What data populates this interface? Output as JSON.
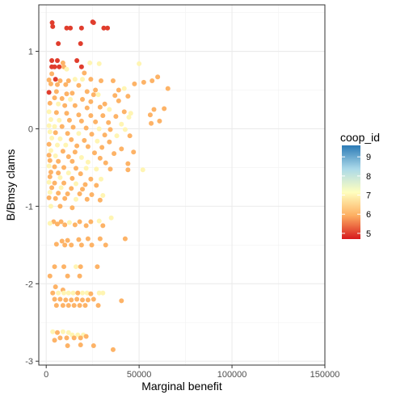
{
  "chart_data": {
    "type": "scatter",
    "xlabel": "Marginal benefit",
    "ylabel": "B/Bmsy clams",
    "xlim": [
      -4000,
      150000
    ],
    "ylim": [
      -3.05,
      1.6
    ],
    "x_ticks": [
      0,
      50000,
      100000,
      150000
    ],
    "x_tick_labels": [
      "0",
      "50000",
      "100000",
      "150000"
    ],
    "y_ticks": [
      -3,
      -2,
      -1,
      0,
      1
    ],
    "y_tick_labels": [
      "-3",
      "-2",
      "-1",
      "0",
      "1"
    ],
    "grid": true,
    "legend": {
      "title": "coop_id",
      "placement": "right",
      "range": [
        4.7,
        9.6
      ],
      "ticks": [
        5,
        6,
        7,
        8,
        9
      ],
      "tick_labels": [
        "5",
        "6",
        "7",
        "8",
        "9"
      ],
      "palette": [
        "#d7191c",
        "#fdae61",
        "#ffffbf",
        "#abd9e9",
        "#2c7bb6"
      ]
    },
    "points": [
      [
        3200,
        1.37,
        5
      ],
      [
        3500,
        1.32,
        5
      ],
      [
        11000,
        1.3,
        5
      ],
      [
        13000,
        1.3,
        5
      ],
      [
        19000,
        1.3,
        5
      ],
      [
        25000,
        1.38,
        5
      ],
      [
        25500,
        1.37,
        5
      ],
      [
        33000,
        1.3,
        5
      ],
      [
        31000,
        1.3,
        5
      ],
      [
        6500,
        1.1,
        5
      ],
      [
        18500,
        1.1,
        5
      ],
      [
        3000,
        0.88,
        5
      ],
      [
        6000,
        0.88,
        5
      ],
      [
        9000,
        0.85,
        6
      ],
      [
        16500,
        0.88,
        5
      ],
      [
        23500,
        0.85,
        7
      ],
      [
        28500,
        0.84,
        7
      ],
      [
        50000,
        0.84,
        7
      ],
      [
        3000,
        0.8,
        5
      ],
      [
        4500,
        0.8,
        5
      ],
      [
        7000,
        0.8,
        5
      ],
      [
        9500,
        0.8,
        6
      ],
      [
        19000,
        0.8,
        5
      ],
      [
        11000,
        0.77,
        7
      ],
      [
        20500,
        0.72,
        6
      ],
      [
        3000,
        0.71,
        6
      ],
      [
        5000,
        0.64,
        5
      ],
      [
        1500,
        0.63,
        6
      ],
      [
        7500,
        0.62,
        6
      ],
      [
        12000,
        0.62,
        6
      ],
      [
        15500,
        0.64,
        7
      ],
      [
        19500,
        0.64,
        7
      ],
      [
        24000,
        0.64,
        6
      ],
      [
        29500,
        0.62,
        6
      ],
      [
        36000,
        0.62,
        6
      ],
      [
        2500,
        0.58,
        6
      ],
      [
        6000,
        0.57,
        6
      ],
      [
        10500,
        0.57,
        6
      ],
      [
        17500,
        0.56,
        6
      ],
      [
        26500,
        0.5,
        6
      ],
      [
        39000,
        0.5,
        6
      ],
      [
        42000,
        0.52,
        7
      ],
      [
        47500,
        0.58,
        6
      ],
      [
        52500,
        0.6,
        6
      ],
      [
        57000,
        0.62,
        6
      ],
      [
        60000,
        0.67,
        6
      ],
      [
        65500,
        0.52,
        6
      ],
      [
        1500,
        0.47,
        5
      ],
      [
        5500,
        0.48,
        6
      ],
      [
        11000,
        0.45,
        6
      ],
      [
        14000,
        0.46,
        6
      ],
      [
        22000,
        0.48,
        6
      ],
      [
        25500,
        0.44,
        6
      ],
      [
        28000,
        0.44,
        7
      ],
      [
        37000,
        0.43,
        6
      ],
      [
        44000,
        0.42,
        6
      ],
      [
        4500,
        0.4,
        6
      ],
      [
        8500,
        0.39,
        6
      ],
      [
        13000,
        0.38,
        7
      ],
      [
        19500,
        0.38,
        6
      ],
      [
        24000,
        0.35,
        6
      ],
      [
        31500,
        0.32,
        6
      ],
      [
        39000,
        0.36,
        6
      ],
      [
        2000,
        0.33,
        6
      ],
      [
        6500,
        0.32,
        7
      ],
      [
        10000,
        0.3,
        6
      ],
      [
        15500,
        0.3,
        6
      ],
      [
        22000,
        0.27,
        6
      ],
      [
        29000,
        0.28,
        6
      ],
      [
        34000,
        0.25,
        7
      ],
      [
        42000,
        0.22,
        6
      ],
      [
        45500,
        0.2,
        7
      ],
      [
        58000,
        0.25,
        6
      ],
      [
        63500,
        0.26,
        6
      ],
      [
        1500,
        0.22,
        7
      ],
      [
        5500,
        0.21,
        6
      ],
      [
        11000,
        0.2,
        6
      ],
      [
        17500,
        0.18,
        6
      ],
      [
        24000,
        0.17,
        6
      ],
      [
        30500,
        0.17,
        6
      ],
      [
        37500,
        0.16,
        6
      ],
      [
        44500,
        0.15,
        7
      ],
      [
        56000,
        0.18,
        6
      ],
      [
        61000,
        0.1,
        6
      ],
      [
        2500,
        0.12,
        7
      ],
      [
        7000,
        0.11,
        7
      ],
      [
        12500,
        0.11,
        6
      ],
      [
        19000,
        0.1,
        6
      ],
      [
        26500,
        0.09,
        6
      ],
      [
        33500,
        0.08,
        6
      ],
      [
        40500,
        0.06,
        7
      ],
      [
        56500,
        0.07,
        6
      ],
      [
        1500,
        0.04,
        7
      ],
      [
        4500,
        0.03,
        7
      ],
      [
        8500,
        0.03,
        6
      ],
      [
        14500,
        0.02,
        6
      ],
      [
        21500,
        0.01,
        6
      ],
      [
        28500,
        0.0,
        7
      ],
      [
        34500,
        -0.01,
        6
      ],
      [
        42500,
        -0.01,
        7
      ],
      [
        2000,
        -0.04,
        7
      ],
      [
        5000,
        -0.05,
        6
      ],
      [
        11500,
        -0.06,
        6
      ],
      [
        17500,
        -0.06,
        7
      ],
      [
        24500,
        -0.07,
        6
      ],
      [
        31500,
        -0.08,
        6
      ],
      [
        38000,
        -0.09,
        7
      ],
      [
        45000,
        -0.09,
        6
      ],
      [
        3000,
        -0.12,
        7
      ],
      [
        7500,
        -0.13,
        7
      ],
      [
        13500,
        -0.14,
        6
      ],
      [
        20500,
        -0.15,
        6
      ],
      [
        27500,
        -0.16,
        7
      ],
      [
        34000,
        -0.17,
        6
      ],
      [
        1500,
        -0.2,
        6
      ],
      [
        6000,
        -0.21,
        7
      ],
      [
        10500,
        -0.21,
        7
      ],
      [
        16500,
        -0.22,
        6
      ],
      [
        22500,
        -0.23,
        6
      ],
      [
        30000,
        -0.24,
        6
      ],
      [
        40500,
        -0.26,
        6
      ],
      [
        2500,
        -0.28,
        7
      ],
      [
        9000,
        -0.29,
        6
      ],
      [
        15500,
        -0.3,
        6
      ],
      [
        26000,
        -0.31,
        6
      ],
      [
        36500,
        -0.32,
        6
      ],
      [
        47000,
        -0.3,
        6
      ],
      [
        1500,
        -0.34,
        6
      ],
      [
        5000,
        -0.35,
        7
      ],
      [
        12000,
        -0.36,
        6
      ],
      [
        19000,
        -0.37,
        7
      ],
      [
        29000,
        -0.38,
        6
      ],
      [
        2000,
        -0.41,
        6
      ],
      [
        6500,
        -0.42,
        6
      ],
      [
        14000,
        -0.42,
        6
      ],
      [
        22500,
        -0.43,
        7
      ],
      [
        32000,
        -0.44,
        6
      ],
      [
        44000,
        -0.45,
        6
      ],
      [
        1500,
        -0.48,
        7
      ],
      [
        4500,
        -0.49,
        6
      ],
      [
        9500,
        -0.5,
        6
      ],
      [
        16000,
        -0.51,
        6
      ],
      [
        21500,
        -0.51,
        7
      ],
      [
        27000,
        -0.52,
        7
      ],
      [
        34500,
        -0.52,
        6
      ],
      [
        44000,
        -0.53,
        6
      ],
      [
        52000,
        -0.53,
        7
      ],
      [
        2500,
        -0.56,
        6
      ],
      [
        6500,
        -0.57,
        6
      ],
      [
        12000,
        -0.57,
        7
      ],
      [
        18500,
        -0.58,
        6
      ],
      [
        2000,
        -0.62,
        6
      ],
      [
        7500,
        -0.63,
        7
      ],
      [
        14000,
        -0.64,
        6
      ],
      [
        24000,
        -0.65,
        6
      ],
      [
        29500,
        -0.65,
        7
      ],
      [
        1500,
        -0.69,
        7
      ],
      [
        4500,
        -0.7,
        6
      ],
      [
        9500,
        -0.7,
        6
      ],
      [
        16000,
        -0.71,
        7
      ],
      [
        21000,
        -0.72,
        6
      ],
      [
        27000,
        -0.73,
        6
      ],
      [
        3000,
        -0.76,
        6
      ],
      [
        8000,
        -0.76,
        7
      ],
      [
        13500,
        -0.77,
        6
      ],
      [
        19500,
        -0.78,
        6
      ],
      [
        2000,
        -0.82,
        7
      ],
      [
        6500,
        -0.83,
        6
      ],
      [
        11500,
        -0.84,
        6
      ],
      [
        18000,
        -0.84,
        6
      ],
      [
        24500,
        -0.85,
        6
      ],
      [
        30500,
        -0.86,
        7
      ],
      [
        1500,
        -0.89,
        6
      ],
      [
        5000,
        -0.9,
        6
      ],
      [
        10000,
        -0.9,
        6
      ],
      [
        16000,
        -0.91,
        7
      ],
      [
        22000,
        -0.91,
        6
      ],
      [
        29000,
        -0.92,
        6
      ],
      [
        2500,
        -1.0,
        7
      ],
      [
        7500,
        -1.0,
        6
      ],
      [
        14000,
        -1.02,
        6
      ],
      [
        4000,
        -1.2,
        6
      ],
      [
        8000,
        -1.2,
        6
      ],
      [
        12500,
        -1.21,
        7
      ],
      [
        18000,
        -1.2,
        6
      ],
      [
        24000,
        -1.2,
        6
      ],
      [
        28500,
        -1.19,
        7
      ],
      [
        35000,
        -1.15,
        7
      ],
      [
        2000,
        -1.22,
        7
      ],
      [
        6000,
        -1.23,
        6
      ],
      [
        10000,
        -1.24,
        6
      ],
      [
        15500,
        -1.24,
        6
      ],
      [
        21500,
        -1.25,
        6
      ],
      [
        30500,
        -1.25,
        6
      ],
      [
        8500,
        -1.45,
        6
      ],
      [
        11500,
        -1.44,
        6
      ],
      [
        17500,
        -1.43,
        6
      ],
      [
        22500,
        -1.42,
        6
      ],
      [
        29000,
        -1.42,
        6
      ],
      [
        42500,
        -1.42,
        6
      ],
      [
        5500,
        -1.49,
        6
      ],
      [
        10000,
        -1.5,
        6
      ],
      [
        13500,
        -1.5,
        6
      ],
      [
        19000,
        -1.5,
        6
      ],
      [
        24500,
        -1.5,
        6
      ],
      [
        32000,
        -1.5,
        6
      ],
      [
        4500,
        -1.78,
        6
      ],
      [
        9500,
        -1.78,
        6
      ],
      [
        16000,
        -1.78,
        7
      ],
      [
        18500,
        -1.78,
        6
      ],
      [
        27500,
        -1.78,
        6
      ],
      [
        2000,
        -1.9,
        6
      ],
      [
        11500,
        -1.9,
        6
      ],
      [
        18000,
        -1.9,
        6
      ],
      [
        5000,
        -2.04,
        6
      ],
      [
        9000,
        -2.08,
        6
      ],
      [
        3500,
        -2.12,
        6
      ],
      [
        6500,
        -2.12,
        7
      ],
      [
        9500,
        -2.12,
        7
      ],
      [
        12000,
        -2.12,
        7
      ],
      [
        14500,
        -2.12,
        7
      ],
      [
        17000,
        -2.12,
        6
      ],
      [
        19500,
        -2.12,
        7
      ],
      [
        22000,
        -2.12,
        7
      ],
      [
        24000,
        -2.13,
        6
      ],
      [
        28500,
        -2.12,
        7
      ],
      [
        30500,
        -2.12,
        7
      ],
      [
        4500,
        -2.2,
        6
      ],
      [
        7500,
        -2.2,
        6
      ],
      [
        10500,
        -2.21,
        6
      ],
      [
        13500,
        -2.21,
        6
      ],
      [
        16500,
        -2.2,
        6
      ],
      [
        19500,
        -2.21,
        6
      ],
      [
        22500,
        -2.21,
        6
      ],
      [
        25500,
        -2.2,
        6
      ],
      [
        40500,
        -2.22,
        6
      ],
      [
        5500,
        -2.28,
        6
      ],
      [
        9000,
        -2.28,
        6
      ],
      [
        12000,
        -2.28,
        6
      ],
      [
        15000,
        -2.28,
        6
      ],
      [
        18000,
        -2.28,
        6
      ],
      [
        21000,
        -2.28,
        6
      ],
      [
        28000,
        -2.28,
        6
      ],
      [
        3500,
        -2.62,
        7
      ],
      [
        6000,
        -2.63,
        6
      ],
      [
        9000,
        -2.62,
        7
      ],
      [
        12000,
        -2.63,
        7
      ],
      [
        14000,
        -2.66,
        7
      ],
      [
        17000,
        -2.66,
        7
      ],
      [
        20000,
        -2.66,
        7
      ],
      [
        7500,
        -2.7,
        6
      ],
      [
        11000,
        -2.7,
        6
      ],
      [
        15000,
        -2.7,
        6
      ],
      [
        18500,
        -2.7,
        6
      ],
      [
        21500,
        -2.68,
        6
      ],
      [
        4500,
        -2.73,
        6
      ],
      [
        11500,
        -2.8,
        6
      ],
      [
        18500,
        -2.79,
        6
      ],
      [
        25500,
        -2.8,
        6
      ],
      [
        36000,
        -2.85,
        6
      ]
    ]
  }
}
